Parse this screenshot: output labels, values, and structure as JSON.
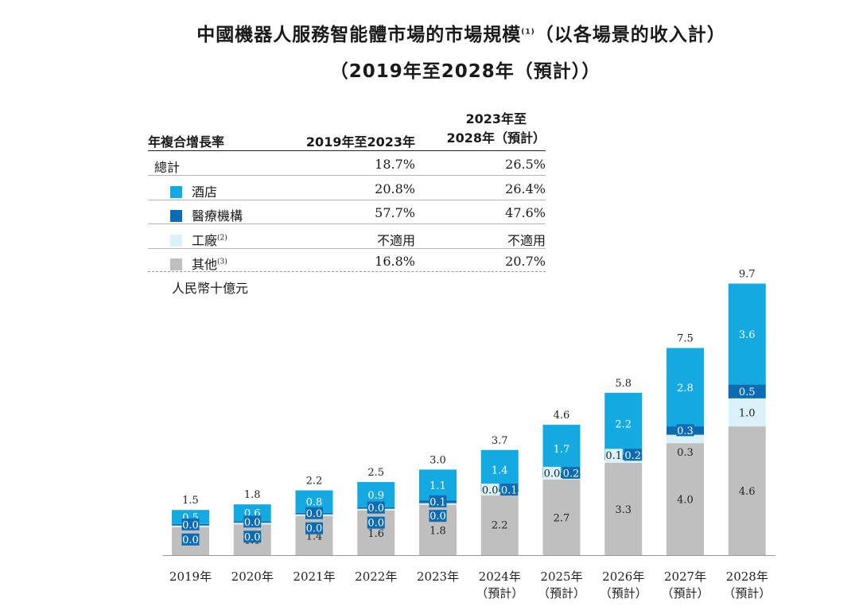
{
  "title_line1": "中國機器人服務智能體市場的市場規模",
  "title_sup": "(1)",
  "title_line1_tail": "（以各場景的收入計）",
  "title_line2": "（2019年至2028年（預計））",
  "legend_table": {
    "header": {
      "label": "年複合增長率",
      "col1": "2019年至2023年",
      "col2_line1": "2023年至",
      "col2_line2": "2028年（預計）"
    },
    "rows": [
      {
        "label": "總計",
        "sup": "",
        "c1": "18.7%",
        "c2": "26.5%",
        "color": ""
      },
      {
        "label": "酒店",
        "sup": "",
        "c1": "20.8%",
        "c2": "26.4%",
        "color": "#14a9e1"
      },
      {
        "label": "醫療機構",
        "sup": "",
        "c1": "57.7%",
        "c2": "47.6%",
        "color": "#0b6cb3"
      },
      {
        "label": "工廠",
        "sup": "(2)",
        "c1": "不適用",
        "c2": "不適用",
        "color": "#d9f1f8"
      },
      {
        "label": "其他",
        "sup": "(3)",
        "c1": "16.8%",
        "c2": "20.7%",
        "color": "#bfbfbf"
      }
    ]
  },
  "unit_label": "人民幣十億元",
  "chart_data": {
    "type": "bar",
    "stacked": true,
    "ylabel": "人民幣十億元",
    "categories": [
      "2019年",
      "2020年",
      "2021年",
      "2022年",
      "2023年",
      "2024年",
      "2025年",
      "2026年",
      "2027年",
      "2028年"
    ],
    "category_sublabels": [
      "",
      "",
      "",
      "",
      "",
      "（預計）",
      "（預計）",
      "（預計）",
      "（預計）",
      "（預計）"
    ],
    "totals": [
      1.5,
      1.8,
      2.2,
      2.5,
      3.0,
      3.7,
      4.6,
      5.8,
      7.5,
      9.7
    ],
    "series": [
      {
        "name": "其他",
        "color": "#bfbfbf",
        "values": [
          1.0,
          1.1,
          1.4,
          1.6,
          1.8,
          2.2,
          2.7,
          3.3,
          4.0,
          4.6
        ]
      },
      {
        "name": "工廠",
        "color": "#d9f1f8",
        "values": [
          0.0,
          0.0,
          0.0,
          0.0,
          0.0,
          0.0,
          0.0,
          0.1,
          0.3,
          1.0
        ]
      },
      {
        "name": "醫療機構",
        "color": "#0b6cb3",
        "values": [
          0.0,
          0.0,
          0.0,
          0.0,
          0.1,
          0.1,
          0.2,
          0.2,
          0.3,
          0.5
        ]
      },
      {
        "name": "酒店",
        "color": "#14a9e1",
        "values": [
          0.5,
          0.6,
          0.8,
          0.9,
          1.1,
          1.4,
          1.7,
          2.2,
          2.8,
          3.6
        ]
      }
    ]
  }
}
